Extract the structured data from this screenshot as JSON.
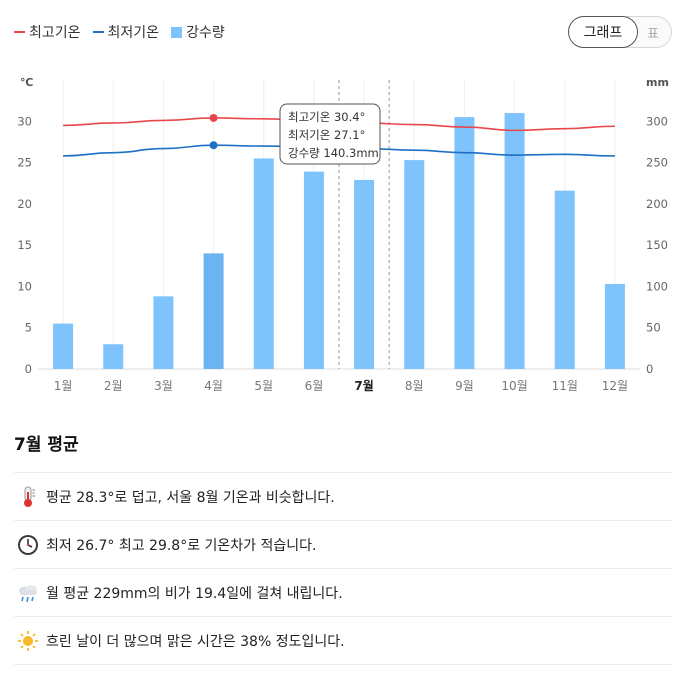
{
  "legend": {
    "max_temp": "최고기온",
    "min_temp": "최저기온",
    "precip": "강수량"
  },
  "toggle": {
    "graph": "그래프",
    "table": "표"
  },
  "colors": {
    "max_temp": "#e8474c",
    "min_temp": "#1f6fc5",
    "precip": "#7ec3fb",
    "precip_highlight": "#6cb4f0"
  },
  "chart_data": {
    "type": "bar",
    "categories": [
      "1월",
      "2월",
      "3월",
      "4월",
      "5월",
      "6월",
      "7월",
      "8월",
      "9월",
      "10월",
      "11월",
      "12월"
    ],
    "series": [
      {
        "name": "강수량",
        "type": "bar",
        "axis": "right",
        "values": [
          55,
          30,
          88,
          140,
          255,
          239,
          229,
          253,
          305,
          310,
          216,
          103
        ]
      },
      {
        "name": "최고기온",
        "type": "line",
        "axis": "left",
        "values": [
          29.5,
          29.8,
          30.1,
          30.4,
          30.3,
          30.0,
          29.8,
          29.6,
          29.3,
          28.9,
          29.1,
          29.4
        ]
      },
      {
        "name": "최저기온",
        "type": "line",
        "axis": "left",
        "values": [
          25.8,
          26.2,
          26.7,
          27.1,
          27.0,
          26.9,
          26.7,
          26.5,
          26.2,
          25.9,
          26.0,
          25.8
        ]
      }
    ],
    "y_left": {
      "unit": "℃",
      "ticks": [
        0,
        5,
        10,
        15,
        20,
        25,
        30
      ],
      "range": [
        0,
        35
      ]
    },
    "y_right": {
      "unit": "mm",
      "ticks": [
        0,
        50,
        100,
        150,
        200,
        250,
        300
      ],
      "range": [
        0,
        350
      ]
    },
    "selected_month_index": 6,
    "hover_month_index": 3,
    "tooltip": {
      "lines": [
        "최고기온 30.4°",
        "최저기온 27.1°",
        "강수량 140.3mm"
      ]
    }
  },
  "summary": {
    "title": "7월 평균",
    "items": [
      {
        "icon": "thermometer-icon",
        "text": "평균 28.3°로 덥고, 서울 8월 기온과 비슷합니다."
      },
      {
        "icon": "clock-icon",
        "text": "최저 26.7° 최고 29.8°로 기온차가 적습니다."
      },
      {
        "icon": "rain-cloud-icon",
        "text": "월 평균 229mm의 비가 19.4일에 걸쳐 내립니다."
      },
      {
        "icon": "sun-icon",
        "text": "흐린 날이 더 많으며 맑은 시간은 38% 정도입니다."
      }
    ]
  }
}
